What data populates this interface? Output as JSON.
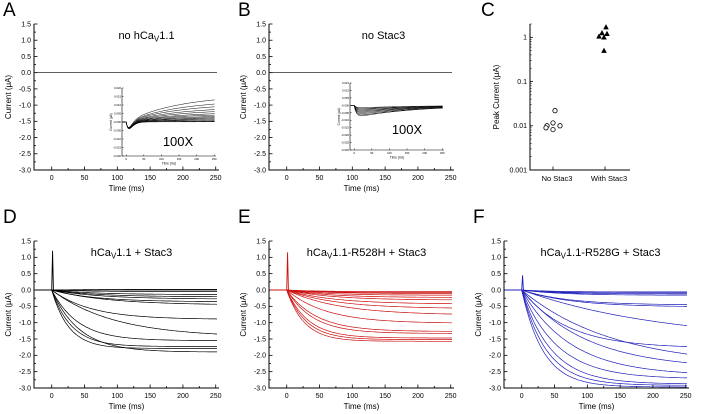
{
  "figure": {
    "background": "#ffffff"
  },
  "chart_data": [
    {
      "panel": "A",
      "type": "line",
      "title_parts": [
        {
          "text": "no hCa"
        },
        {
          "text": "V",
          "sub": true
        },
        {
          "text": "1.1"
        }
      ],
      "title_dx": 20,
      "xlabel": "Time (ms)",
      "ylabel": "Current (μA)",
      "xlim": [
        -27,
        255
      ],
      "xtick_range": [
        0,
        250
      ],
      "xticks_major": 50,
      "xticks_minor": 25,
      "ylim": [
        -3.0,
        1.5
      ],
      "ymajor": 0.5,
      "yminor": 0.25,
      "color": "#000000",
      "model": "I(t) = plateau * (1 - exp(-t/tau)), baseline 0 before t=0",
      "spike": 0,
      "traces": [
        [
          0,
          50
        ]
      ],
      "inset": {
        "label": "100X",
        "label_x": 178,
        "label_y": 146,
        "box": {
          "l": 122,
          "t": 88,
          "r": 216,
          "b": 156
        },
        "xlabel": "Time (ms)",
        "ylabel": "Current (μA)",
        "xlim": [
          -12,
          255
        ],
        "xticks_major": 50,
        "ylim": [
          -0.02,
          0.02
        ],
        "ystep": 0.005,
        "mode": "rise",
        "tau": 150,
        "dip": 0.004,
        "plateaus": [
          0.016,
          0.013,
          0.011,
          0.009,
          0.0075,
          0.006,
          0.005,
          0.004,
          0.0032,
          0.0025,
          0.0018,
          0.0012,
          0.0006,
          0.0002
        ]
      }
    },
    {
      "panel": "B",
      "type": "line",
      "title_parts": [
        {
          "text": "no Stac3"
        }
      ],
      "title_dx": 22,
      "xlabel": "Time (ms)",
      "ylabel": "Current (μA)",
      "xlim": [
        -27,
        255
      ],
      "xtick_range": [
        0,
        250
      ],
      "xticks_major": 50,
      "xticks_minor": 25,
      "ylim": [
        -3.0,
        1.5
      ],
      "ymajor": 0.5,
      "yminor": 0.25,
      "color": "#000000",
      "model": "I(t) = plateau * (1 - exp(-t/tau)), baseline 0 before t=0",
      "spike": 0,
      "traces": [
        [
          0,
          50
        ]
      ],
      "inset": {
        "label": "100X",
        "label_x": 172,
        "label_y": 134,
        "box": {
          "l": 115,
          "t": 83,
          "r": 209,
          "b": 150
        },
        "xlabel": "Time (ms)",
        "ylabel": "Current (μA)",
        "xlim": [
          -12,
          255
        ],
        "xticks_major": 50,
        "ylim": [
          -0.03,
          0.015
        ],
        "ystep": 0.005,
        "mode": "dip",
        "tau_on": 6,
        "tau_off": 170,
        "amps": [
          0.0018,
          0.0025,
          0.0032,
          0.004,
          0.0048,
          0.0056,
          0.0065,
          0.0075,
          0.0082
        ]
      }
    },
    {
      "panel": "C",
      "type": "scatter",
      "ylabel": "Peak Current (μA)",
      "log_y": true,
      "ylim": [
        0.001,
        2.0
      ],
      "yticks": [
        0.001,
        0.01,
        0.1,
        1
      ],
      "ytick_labels": [
        "0.001",
        "0.01",
        "0.1",
        "1"
      ],
      "groups": [
        {
          "label": "No Stac3",
          "marker": "open-circle",
          "fx": 0.23,
          "values": [
            0.022,
            0.0116,
            0.01,
            0.01,
            0.009,
            0.0082
          ],
          "dx": [
            2,
            0,
            -6,
            7,
            -7,
            0
          ]
        },
        {
          "label": "With Stac3",
          "marker": "filled-triangle",
          "fx": 0.75,
          "values": [
            1.7,
            1.25,
            1.2,
            1.05,
            1.0,
            0.5
          ],
          "dx": [
            1,
            -3,
            2,
            -6,
            -1,
            -1
          ]
        }
      ]
    },
    {
      "panel": "D",
      "type": "line",
      "title_parts": [
        {
          "text": "hCa"
        },
        {
          "text": "V",
          "sub": true
        },
        {
          "text": "1.1 + Stac3"
        }
      ],
      "title_dx": 5,
      "xlabel": "Time (ms)",
      "ylabel": "Current (μA)",
      "xlim": [
        -27,
        255
      ],
      "xtick_range": [
        0,
        250
      ],
      "xticks_major": 50,
      "xticks_minor": 25,
      "ylim": [
        -3.0,
        1.5
      ],
      "ymajor": 0.5,
      "yminor": 0.25,
      "color": "#000000",
      "model": "I(t) = plateau * (1 - exp(-t/tau)), capacitive spike at t=0",
      "spike": 1.2,
      "traces": [
        [
          0.02,
          60
        ],
        [
          0,
          60
        ],
        [
          -0.05,
          60
        ],
        [
          -0.14,
          65
        ],
        [
          -0.21,
          70
        ],
        [
          -0.28,
          75
        ],
        [
          -0.36,
          65
        ],
        [
          -0.46,
          85
        ],
        [
          -0.9,
          60
        ],
        [
          -1.45,
          95
        ],
        [
          -1.55,
          40
        ],
        [
          -1.73,
          30
        ],
        [
          -1.79,
          26
        ],
        [
          -1.9,
          42
        ]
      ]
    },
    {
      "panel": "E",
      "type": "line",
      "title_parts": [
        {
          "text": "hCa"
        },
        {
          "text": "V",
          "sub": true
        },
        {
          "text": "1.1-R528H + Stac3"
        }
      ],
      "title_dx": 5,
      "xlabel": "Time (ms)",
      "ylabel": "Current (μA)",
      "xlim": [
        -27,
        255
      ],
      "xtick_range": [
        0,
        250
      ],
      "xticks_major": 50,
      "xticks_minor": 25,
      "ylim": [
        -3.0,
        1.5
      ],
      "ymajor": 0.5,
      "yminor": 0.25,
      "color": "#cc1111",
      "model": "I(t) = plateau * (1 - exp(-t/tau)), capacitive spike at t=0",
      "spike": 1.15,
      "traces": [
        [
          -0.05,
          50
        ],
        [
          -0.08,
          55
        ],
        [
          -0.11,
          60
        ],
        [
          -0.16,
          60
        ],
        [
          -0.23,
          65
        ],
        [
          -0.31,
          70
        ],
        [
          -0.43,
          70
        ],
        [
          -0.57,
          75
        ],
        [
          -0.77,
          80
        ],
        [
          -1.02,
          60
        ],
        [
          -1.27,
          45
        ],
        [
          -1.33,
          40
        ],
        [
          -1.47,
          33
        ],
        [
          -1.52,
          30
        ],
        [
          -1.57,
          27
        ]
      ]
    },
    {
      "panel": "F",
      "type": "line",
      "title_parts": [
        {
          "text": "hCa"
        },
        {
          "text": "V",
          "sub": true
        },
        {
          "text": "1.1-R528G + Stac3"
        }
      ],
      "title_dx": 4,
      "xlabel": "Time (ms)",
      "ylabel": "Current (μA)",
      "xlim": [
        -27,
        255
      ],
      "xtick_range": [
        0,
        250
      ],
      "xticks_major": 50,
      "xticks_minor": 25,
      "ylim": [
        -3.0,
        1.5
      ],
      "ymajor": 0.5,
      "yminor": 0.25,
      "color": "#2222bb",
      "model": "I(t) = plateau * (1 - exp(-t/tau)), capacitive spike at t=0",
      "spike": 0.45,
      "traces": [
        [
          -0.06,
          50
        ],
        [
          -0.09,
          50
        ],
        [
          -0.12,
          55
        ],
        [
          -0.16,
          60
        ],
        [
          -0.46,
          70
        ],
        [
          -0.52,
          75
        ],
        [
          -1.6,
          220
        ],
        [
          -1.78,
          70
        ],
        [
          -2.35,
          140
        ],
        [
          -2.42,
          100
        ],
        [
          -2.62,
          75
        ],
        [
          -2.72,
          55
        ],
        [
          -2.88,
          45
        ],
        [
          -2.92,
          38
        ],
        [
          -2.97,
          33
        ]
      ]
    }
  ]
}
